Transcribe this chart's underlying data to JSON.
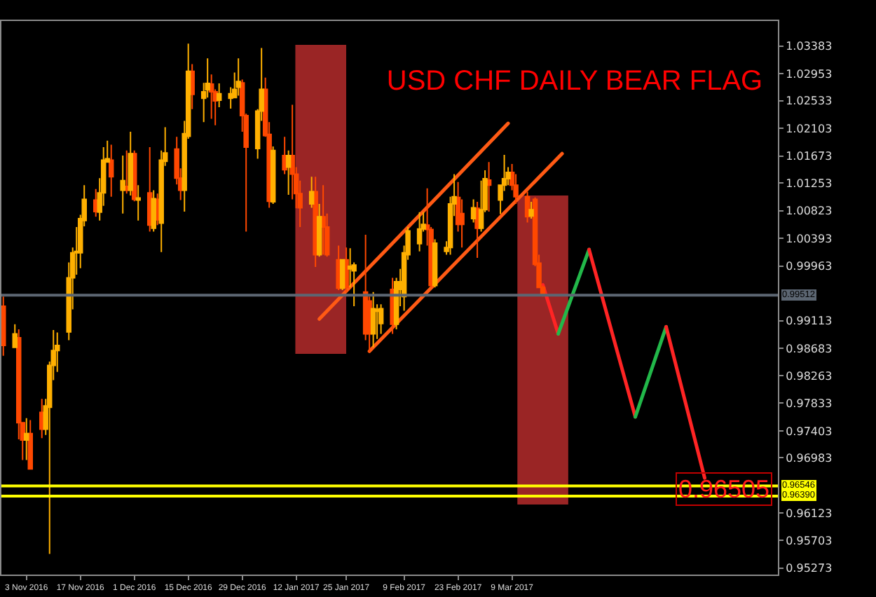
{
  "chart_data": {
    "type": "candlestick",
    "title": "USD CHF DAILY BEAR FLAG",
    "x": [
      "2016-10-28",
      "2016-10-31",
      "2016-11-01",
      "2016-11-02",
      "2016-11-03",
      "2016-11-04",
      "2016-11-07",
      "2016-11-08",
      "2016-11-09",
      "2016-11-10",
      "2016-11-11",
      "2016-11-14",
      "2016-11-15",
      "2016-11-16",
      "2016-11-17",
      "2016-11-18",
      "2016-11-21",
      "2016-11-22",
      "2016-11-23",
      "2016-11-24",
      "2016-11-25",
      "2016-11-28",
      "2016-11-29",
      "2016-11-30",
      "2016-12-01",
      "2016-12-02",
      "2016-12-05",
      "2016-12-06",
      "2016-12-07",
      "2016-12-08",
      "2016-12-09",
      "2016-12-12",
      "2016-12-13",
      "2016-12-14",
      "2016-12-15",
      "2016-12-16",
      "2016-12-19",
      "2016-12-20",
      "2016-12-21",
      "2016-12-22",
      "2016-12-23",
      "2016-12-26",
      "2016-12-27",
      "2016-12-28",
      "2016-12-29",
      "2016-12-30",
      "2017-01-02",
      "2017-01-03",
      "2017-01-04",
      "2017-01-05",
      "2017-01-06",
      "2017-01-09",
      "2017-01-10",
      "2017-01-11",
      "2017-01-12",
      "2017-01-13",
      "2017-01-16",
      "2017-01-17",
      "2017-01-18",
      "2017-01-19",
      "2017-01-20",
      "2017-01-23",
      "2017-01-24",
      "2017-01-25",
      "2017-01-26",
      "2017-01-27",
      "2017-01-30",
      "2017-01-31",
      "2017-02-01",
      "2017-02-02",
      "2017-02-03",
      "2017-02-06",
      "2017-02-07",
      "2017-02-08",
      "2017-02-09",
      "2017-02-10",
      "2017-02-13",
      "2017-02-14",
      "2017-02-15",
      "2017-02-16",
      "2017-02-17",
      "2017-02-20",
      "2017-02-21",
      "2017-02-22",
      "2017-02-23",
      "2017-02-24",
      "2017-02-27",
      "2017-02-28",
      "2017-03-01",
      "2017-03-02",
      "2017-03-03",
      "2017-03-06",
      "2017-03-07",
      "2017-03-08",
      "2017-03-09",
      "2017-03-10",
      "2017-03-13",
      "2017-03-14",
      "2017-03-15",
      "2017-03-16",
      "2017-03-17"
    ],
    "ohlc": [
      [
        0.9934,
        0.9949,
        0.9857,
        0.9873
      ],
      [
        0.987,
        0.9906,
        0.9869,
        0.9891
      ],
      [
        0.9885,
        0.9898,
        0.9727,
        0.9753
      ],
      [
        0.9753,
        0.9753,
        0.9695,
        0.9726
      ],
      [
        0.9726,
        0.976,
        0.9695,
        0.9736
      ],
      [
        0.9736,
        0.9757,
        0.9681,
        0.9681
      ],
      [
        0.9769,
        0.979,
        0.9729,
        0.9743
      ],
      [
        0.9743,
        0.979,
        0.9734,
        0.9779
      ],
      [
        0.9777,
        0.9848,
        0.9549,
        0.9842
      ],
      [
        0.9842,
        0.9897,
        0.9819,
        0.9865
      ],
      [
        0.9865,
        0.9893,
        0.9832,
        0.9873
      ],
      [
        0.9894,
        1.0002,
        0.9881,
        0.9978
      ],
      [
        0.9978,
        1.0025,
        0.9929,
        1.0017
      ],
      [
        1.0017,
        1.0057,
        0.9983,
        1.0019
      ],
      [
        1.0017,
        1.0076,
        0.9993,
        1.007
      ],
      [
        1.0067,
        1.0122,
        1.0058,
        1.01
      ],
      [
        1.0099,
        1.0116,
        1.0073,
        1.0081
      ],
      [
        1.008,
        1.0133,
        1.0067,
        1.011
      ],
      [
        1.011,
        1.0181,
        1.009,
        1.0161
      ],
      [
        1.0158,
        1.0191,
        1.0158,
        1.0163
      ],
      [
        1.0161,
        1.0185,
        1.0104,
        1.0135
      ],
      [
        1.0114,
        1.0168,
        1.0078,
        1.0129
      ],
      [
        1.012,
        1.0176,
        1.0109,
        1.0114
      ],
      [
        1.0114,
        1.0205,
        1.0106,
        1.0171
      ],
      [
        1.0171,
        1.0176,
        1.0097,
        1.01
      ],
      [
        1.0099,
        1.0122,
        1.0067,
        1.0102
      ],
      [
        1.011,
        1.0181,
        1.005,
        1.006
      ],
      [
        1.0055,
        1.0114,
        1.005,
        1.0101
      ],
      [
        1.01,
        1.0109,
        1.006,
        1.0068
      ],
      [
        1.0063,
        1.0176,
        1.0018,
        1.0161
      ],
      [
        1.0159,
        1.0212,
        1.0152,
        1.0172
      ],
      [
        1.0178,
        1.0197,
        1.0123,
        1.0133
      ],
      [
        1.0133,
        1.0148,
        1.0099,
        1.0114
      ],
      [
        1.0114,
        1.0222,
        1.0081,
        1.0202
      ],
      [
        1.0198,
        1.0342,
        1.0194,
        1.0299
      ],
      [
        1.0299,
        1.031,
        1.024,
        1.0263
      ],
      [
        1.0257,
        1.0281,
        1.022,
        1.0267
      ],
      [
        1.027,
        1.0319,
        1.0258,
        1.028
      ],
      [
        1.0279,
        1.0294,
        1.0225,
        1.0267
      ],
      [
        1.0267,
        1.0271,
        1.0215,
        1.0253
      ],
      [
        1.0254,
        1.028,
        1.0243,
        1.0264
      ],
      [
        1.0257,
        1.0274,
        1.0241,
        1.0264
      ],
      [
        1.0258,
        1.0297,
        1.0258,
        1.0271
      ],
      [
        1.0274,
        1.0319,
        1.0261,
        1.0283
      ],
      [
        1.0281,
        1.0286,
        1.0205,
        1.023
      ],
      [
        1.023,
        1.0233,
        1.005,
        1.0181
      ],
      [
        1.0179,
        1.024,
        1.0163,
        1.0237
      ],
      [
        1.0237,
        1.0335,
        1.0222,
        1.0271
      ],
      [
        1.0271,
        1.0289,
        1.0197,
        1.0199
      ],
      [
        1.0201,
        1.022,
        1.0087,
        1.0097
      ],
      [
        1.0096,
        1.0182,
        1.0093,
        1.0176
      ],
      [
        1.0168,
        1.0197,
        1.0139,
        1.0146
      ],
      [
        1.015,
        1.0176,
        1.0107,
        1.0168
      ],
      [
        1.0168,
        1.0247,
        1.01,
        1.0139
      ],
      [
        1.0139,
        1.015,
        1.0086,
        1.0109
      ],
      [
        1.0109,
        1.0129,
        1.0057,
        1.0087
      ],
      [
        1.0093,
        1.0135,
        1.0087,
        1.0112
      ],
      [
        1.0112,
        1.0135,
        0.9995,
        1.0014
      ],
      [
        1.0014,
        1.0093,
        1.0011,
        1.0073
      ],
      [
        1.0073,
        1.0122,
        1.0014,
        1.0057
      ],
      [
        1.0057,
        1.0078,
        1.0011,
        1.0014
      ],
      [
        1.0006,
        1.0028,
        0.9959,
        0.9962
      ],
      [
        0.9962,
        1.0006,
        0.9959,
        1.0006
      ],
      [
        1.0006,
        1.0025,
        0.9956,
        0.9963
      ],
      [
        0.9992,
        1.0024,
        0.9963,
        0.9996
      ],
      [
        0.9989,
        1.0002,
        0.9934,
        0.9998
      ],
      [
        0.9956,
        1.0045,
        0.9881,
        0.9891
      ],
      [
        0.9942,
        0.9949,
        0.9862,
        0.9891
      ],
      [
        0.9891,
        0.9956,
        0.987,
        0.993
      ],
      [
        0.9926,
        0.9937,
        0.9883,
        0.9929
      ],
      [
        0.9907,
        0.9937,
        0.9891,
        0.993
      ],
      [
        0.996,
        0.9978,
        0.9891,
        0.9906
      ],
      [
        0.9906,
        0.9978,
        0.9898,
        0.9972
      ],
      [
        0.996,
        0.9992,
        0.9934,
        0.9972
      ],
      [
        0.9949,
        1.0028,
        0.9927,
        1.0017
      ],
      [
        1.0014,
        1.0057,
        1.0006,
        1.0051
      ],
      [
        1.0031,
        1.008,
        1.0019,
        1.0054
      ],
      [
        1.0054,
        1.008,
        1.005,
        1.0061
      ],
      [
        1.006,
        1.0117,
        1.0028,
        1.0053
      ],
      [
        1.0053,
        1.0057,
        0.9963,
        0.9966
      ],
      [
        0.9966,
        1.0038,
        0.9963,
        1.0032
      ],
      [
        1.0019,
        1.0035,
        1.0014,
        1.0025
      ],
      [
        1.0025,
        1.0104,
        1.0014,
        1.0093
      ],
      [
        1.0093,
        1.0139,
        1.0074,
        1.0104
      ],
      [
        1.0103,
        1.0127,
        1.005,
        1.0061
      ],
      [
        1.0078,
        1.01,
        1.0025,
        1.0061
      ],
      [
        1.007,
        1.01,
        1.0064,
        1.0087
      ],
      [
        1.0086,
        1.0096,
        1.0009,
        1.0055
      ],
      [
        1.0055,
        1.0129,
        1.005,
        1.0084
      ],
      [
        1.0084,
        1.0145,
        1.008,
        1.0132
      ],
      [
        1.013,
        1.0158,
        1.0081,
        1.0122
      ],
      [
        1.0099,
        1.0122,
        1.0077,
        1.0122
      ],
      [
        1.0122,
        1.0169,
        1.0113,
        1.0132
      ],
      [
        1.0132,
        1.015,
        1.0122,
        1.0142
      ],
      [
        1.0142,
        1.0155,
        1.0114,
        1.0122
      ],
      [
        1.0122,
        1.0139,
        1.0093,
        1.0104
      ],
      [
        1.0104,
        1.0112,
        1.0064,
        1.0073
      ],
      [
        1.0074,
        1.0096,
        1.007,
        1.0084
      ],
      [
        1.01,
        1.0103,
        0.9996,
        0.9999
      ],
      [
        1.0001,
        1.0014,
        0.9962,
        0.9963
      ],
      [
        0.9963,
        0.9966,
        0.9949,
        0.9952
      ]
    ],
    "colors": [
      "#ff4800",
      "#ffb000",
      "#ff4800",
      "#ff4800",
      "#ffb000",
      "#ff4800",
      "#ff4800",
      "#ffb000",
      "#ffb000",
      "#ffb000",
      "#ffb000",
      "#ffb000",
      "#ffb000",
      "#ffb000",
      "#ffb000",
      "#ffb000",
      "#ff4800",
      "#ffb000",
      "#ffb000",
      "#ffb000",
      "#ff4800",
      "#ffb000",
      "#ff4800",
      "#ffb000",
      "#ff4800",
      "#ffb000",
      "#ff4800",
      "#ffb000",
      "#ff4800",
      "#ffb000",
      "#ffb000",
      "#ff4800",
      "#ff4800",
      "#ffb000",
      "#ffb000",
      "#ff4800",
      "#ffb000",
      "#ffb000",
      "#ff4800",
      "#ff4800",
      "#ffb000",
      "#ffb000",
      "#ffb000",
      "#ffb000",
      "#ff4800",
      "#ff4800",
      "#ffb000",
      "#ffb000",
      "#ff4800",
      "#ff4800",
      "#ffb000",
      "#ff4800",
      "#ffb000",
      "#ff4800",
      "#ff4800",
      "#ff4800",
      "#ffb000",
      "#ff4800",
      "#ffb000",
      "#ff4800",
      "#ff4800",
      "#ff4800",
      "#ffb000",
      "#ff4800",
      "#ffb000",
      "#ffb000",
      "#ff4800",
      "#ff4800",
      "#ffb000",
      "#ffb000",
      "#ffb000",
      "#ff4800",
      "#ffb000",
      "#ffb000",
      "#ffb000",
      "#ffb000",
      "#ffb000",
      "#ffb000",
      "#ff4800",
      "#ff4800",
      "#ffb000",
      "#ffb000",
      "#ffb000",
      "#ffb000",
      "#ff4800",
      "#ff4800",
      "#ffb000",
      "#ff4800",
      "#ffb000",
      "#ffb000",
      "#ff4800",
      "#ffb000",
      "#ffb000",
      "#ffb000",
      "#ff4800",
      "#ff4800",
      "#ff4800",
      "#ffb000",
      "#ff4800",
      "#ff4800",
      "#ff4800"
    ],
    "series": [
      {
        "type": "bar",
        "color": "#b52c2c",
        "x": [
          "2017-01-18T09:00",
          "2017-03-17T00:00"
        ],
        "base": [
          0.986,
          0.9626
        ],
        "values": [
          0.048,
          0.048
        ]
      },
      {
        "type": "line",
        "color": "#ff5a14",
        "x": [
          "2017-01-18",
          "2017-03-08"
        ],
        "values": [
          0.9914,
          1.0218
        ]
      },
      {
        "type": "line",
        "color": "#ff5a14",
        "x": [
          "2017-01-31",
          "2017-03-22"
        ],
        "values": [
          0.9864,
          1.0171
        ]
      },
      {
        "type": "line",
        "color": "#ff2424",
        "x": [
          "2017-03-17",
          "2017-03-21"
        ],
        "values": [
          0.9967,
          0.9891
        ]
      },
      {
        "type": "line",
        "color": "#22b84a",
        "x": [
          "2017-03-21",
          "2017-03-29"
        ],
        "values": [
          0.9891,
          1.0022
        ]
      },
      {
        "type": "line",
        "color": "#ff2424",
        "x": [
          "2017-03-29",
          "2017-04-10"
        ],
        "values": [
          1.0022,
          0.9762
        ]
      },
      {
        "type": "line",
        "color": "#22b84a",
        "x": [
          "2017-04-10",
          "2017-04-18"
        ],
        "values": [
          0.9762,
          0.9902
        ]
      },
      {
        "type": "line",
        "color": "#ff2424",
        "x": [
          "2017-04-18",
          "2017-04-28"
        ],
        "values": [
          0.9902,
          0.9667
        ]
      }
    ],
    "xlim": [
      "2016-10-27T12:00",
      "2017-05-17"
    ],
    "xticks": [
      {
        "value": "2016-11-03",
        "label": "3 Nov 2016"
      },
      {
        "value": "2016-11-17",
        "label": "17 Nov 2016"
      },
      {
        "value": "2016-12-01",
        "label": "1 Dec 2016"
      },
      {
        "value": "2016-12-15",
        "label": "15 Dec 2016"
      },
      {
        "value": "2016-12-29",
        "label": "29 Dec 2016"
      },
      {
        "value": "2017-01-12",
        "label": "12 Jan 2017"
      },
      {
        "value": "2017-01-25",
        "label": "25 Jan 2017"
      },
      {
        "value": "2017-02-09",
        "label": "9 Feb 2017"
      },
      {
        "value": "2017-02-23",
        "label": "23 Feb 2017"
      },
      {
        "value": "2017-03-09",
        "label": "9 Mar 2017"
      }
    ],
    "ylim": [
      0.9517,
      1.0377
    ],
    "yticks": [
      1.03383,
      1.02953,
      1.02533,
      1.02103,
      1.01673,
      1.01253,
      1.00823,
      1.00393,
      0.99963,
      0.99113,
      0.98683,
      0.98263,
      0.97833,
      0.97403,
      0.96983,
      0.96123,
      0.95703,
      0.95273
    ],
    "ref_lines": [
      {
        "axis": "y",
        "value": 0.99512,
        "label": "0.99512",
        "color": "#5c6672"
      },
      {
        "axis": "y",
        "value": 0.96546,
        "label": "0.96546",
        "color": "#ffff00"
      },
      {
        "axis": "y",
        "value": 0.9639,
        "label": "0.96390",
        "color": "#ffff00"
      }
    ],
    "annotations": [
      {
        "text": "0.96505",
        "x": "2017-05-03",
        "y": 0.96505
      }
    ]
  }
}
